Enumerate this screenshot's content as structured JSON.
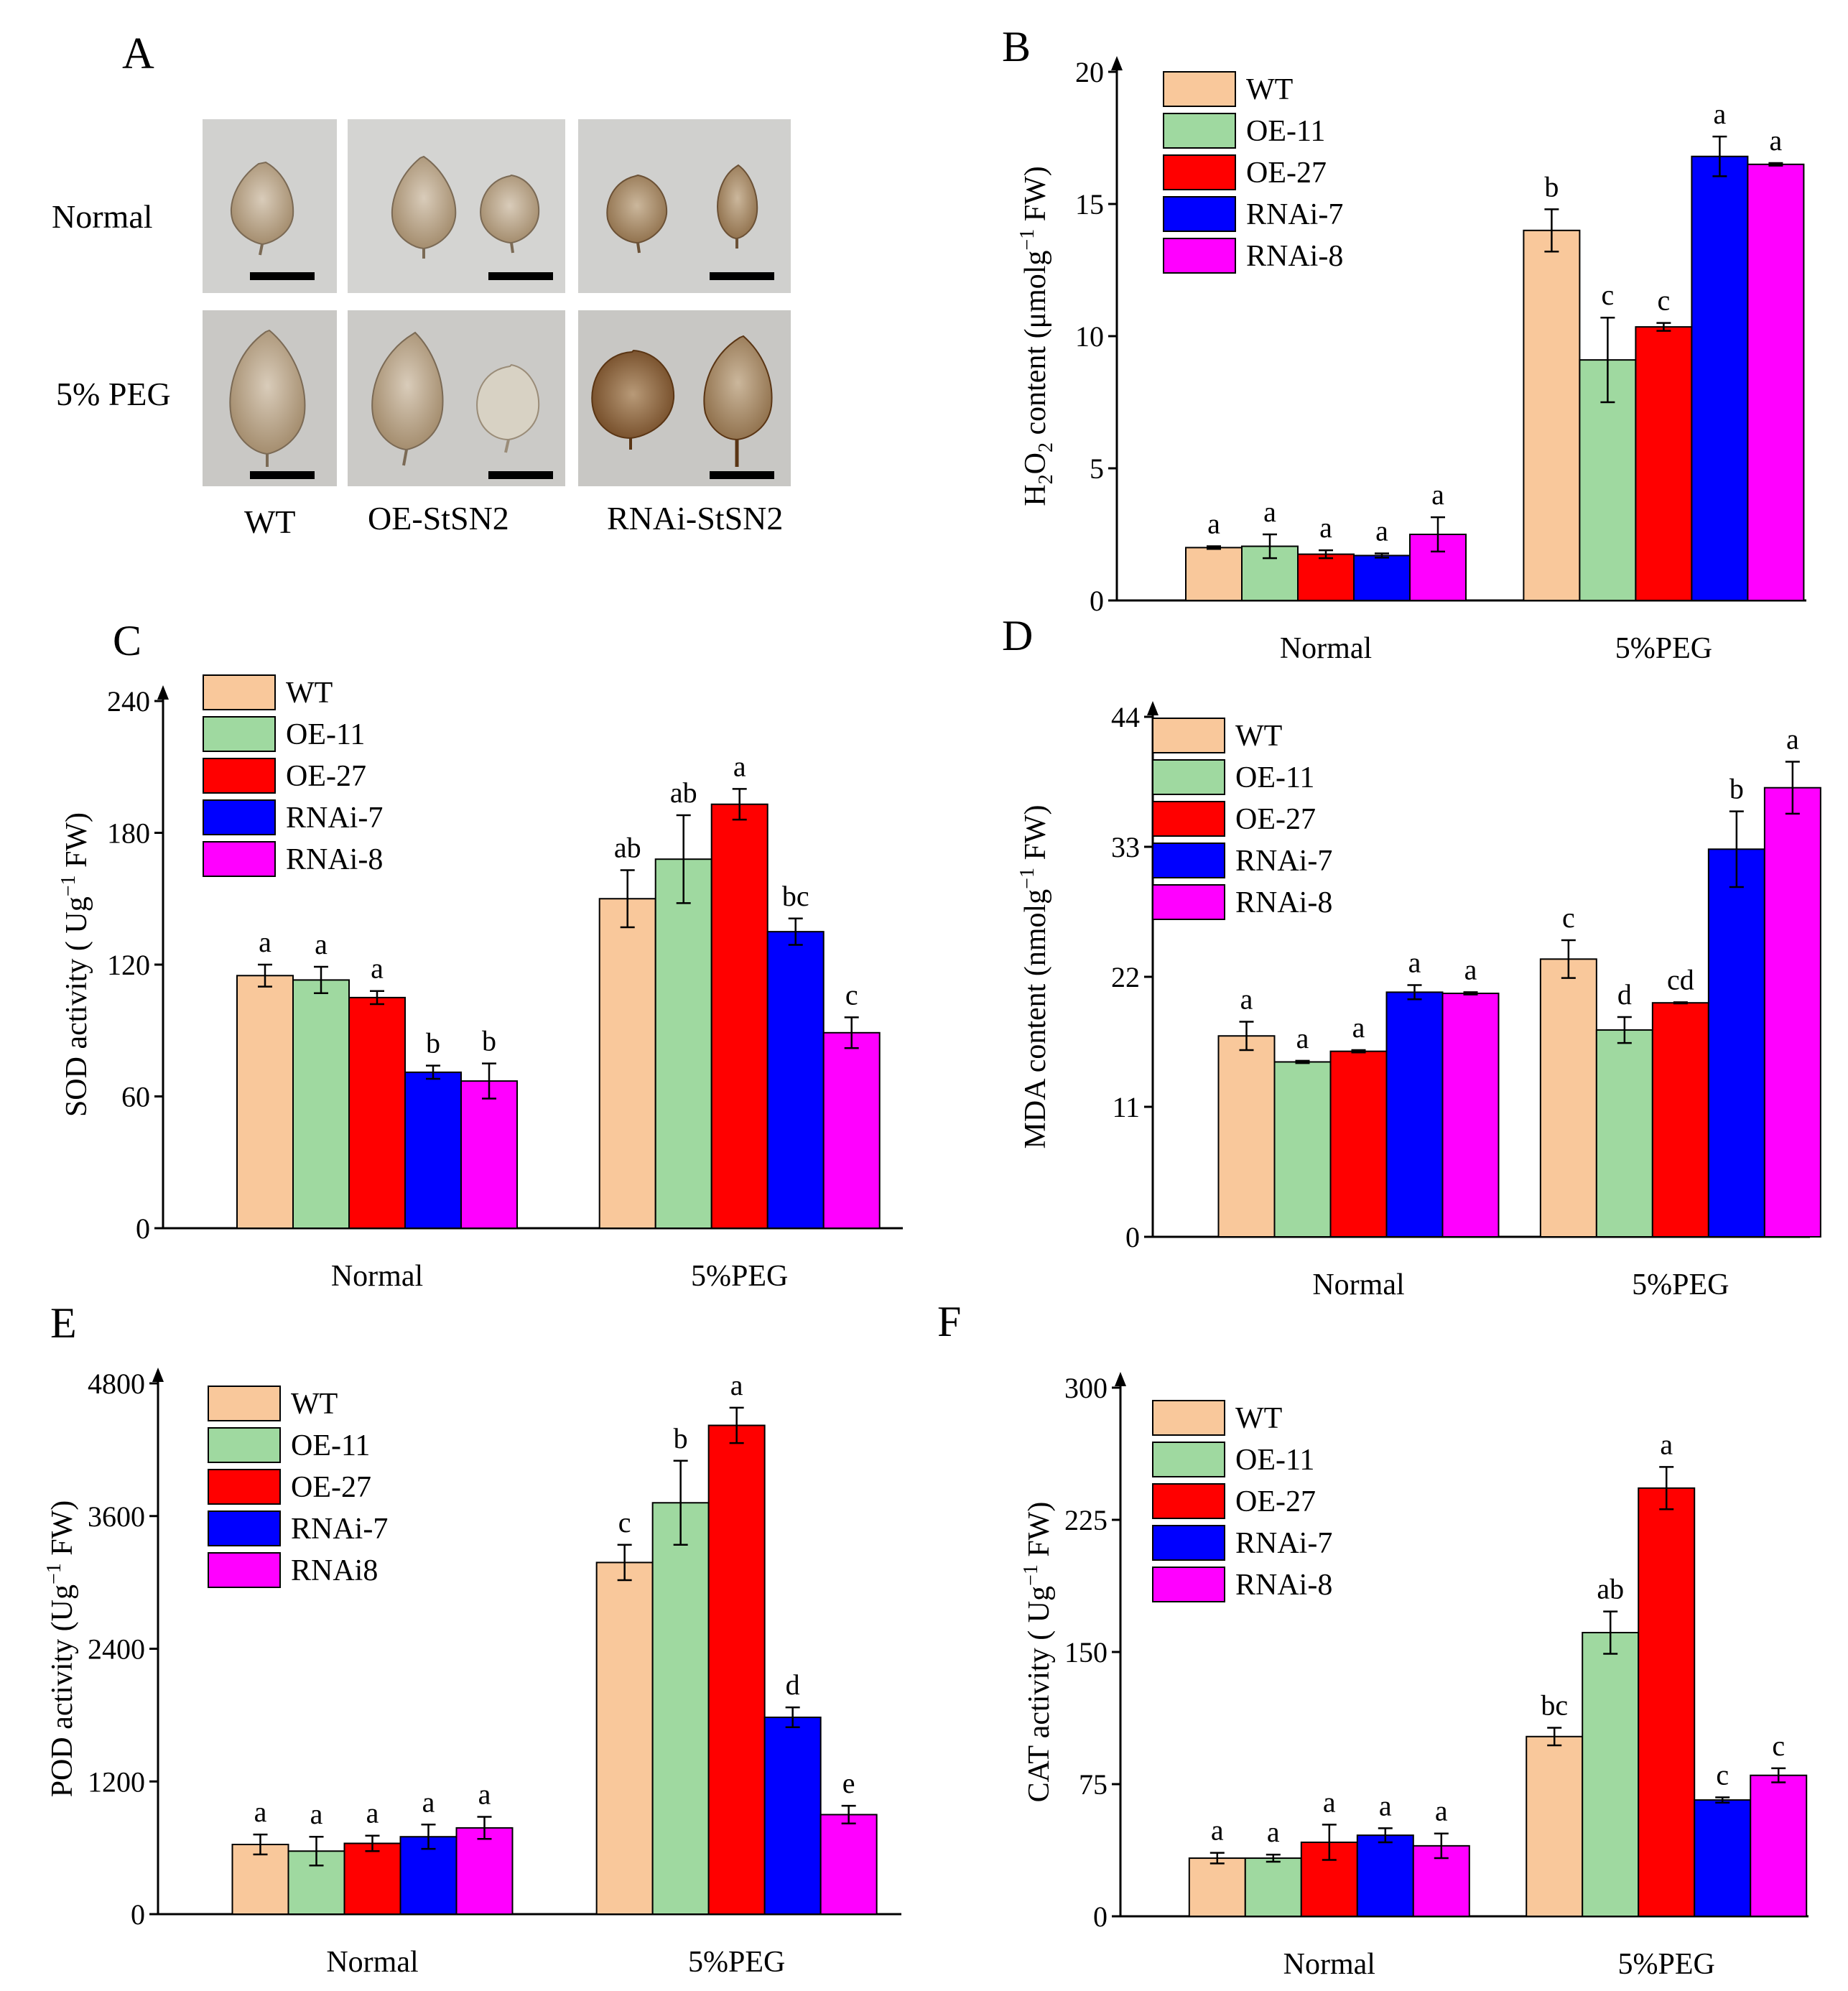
{
  "panel_a": {
    "letter": "A",
    "row_labels": [
      "Normal",
      "5% PEG"
    ],
    "col_labels": [
      "WT",
      "OE-StSN2",
      "RNAi-StSN2"
    ]
  },
  "colors": {
    "WT": "#f9c89b",
    "OE-11": "#9fd9a0",
    "OE-27": "#ff0000",
    "RNAi-7": "#0000ff",
    "RNAi-8": "#ff00ff",
    "photo_bg": "#d4d4d2",
    "leaf_light": "#c9b8a2",
    "leaf_dark": "#8a6136"
  },
  "chart_data": [
    {
      "letter": "B",
      "type": "bar",
      "title": "",
      "xlabel": "",
      "ylabel_parts": [
        "H",
        "2",
        "O",
        "2",
        " content (μmolg",
        "−1",
        " FW)"
      ],
      "ylim": [
        0,
        20
      ],
      "ticks": [
        0,
        5,
        10,
        15,
        20
      ],
      "categories": [
        "Normal",
        "5%PEG"
      ],
      "legend": [
        "WT",
        "OE-11",
        "OE-27",
        "RNAi-7",
        "RNAi-8"
      ],
      "series": [
        {
          "name": "WT",
          "values": [
            2.0,
            14.0
          ],
          "errors": [
            0.05,
            0.8
          ],
          "letters": [
            "a",
            "b"
          ]
        },
        {
          "name": "OE-11",
          "values": [
            2.05,
            9.1
          ],
          "errors": [
            0.45,
            1.6
          ],
          "letters": [
            "a",
            "c"
          ]
        },
        {
          "name": "OE-27",
          "values": [
            1.75,
            10.35
          ],
          "errors": [
            0.15,
            0.15
          ],
          "letters": [
            "a",
            "c"
          ]
        },
        {
          "name": "RNAi-7",
          "values": [
            1.7,
            16.8
          ],
          "errors": [
            0.08,
            0.75
          ],
          "letters": [
            "a",
            "a"
          ]
        },
        {
          "name": "RNAi-8",
          "values": [
            2.5,
            16.5
          ],
          "errors": [
            0.65,
            0.05
          ],
          "letters": [
            "a",
            "a"
          ]
        }
      ]
    },
    {
      "letter": "C",
      "type": "bar",
      "title": "",
      "xlabel": "",
      "ylabel_parts": [
        "SOD activity ( Ug",
        "−1",
        " FW)"
      ],
      "ylim": [
        0,
        240
      ],
      "ticks": [
        0,
        60,
        120,
        180,
        240
      ],
      "categories": [
        "Normal",
        "5%PEG"
      ],
      "legend": [
        "WT",
        "OE-11",
        "OE-27",
        "RNAi-7",
        "RNAi-8"
      ],
      "series": [
        {
          "name": "WT",
          "values": [
            115,
            150
          ],
          "errors": [
            5,
            13
          ],
          "letters": [
            "a",
            "ab"
          ]
        },
        {
          "name": "OE-11",
          "values": [
            113,
            168
          ],
          "errors": [
            6,
            20
          ],
          "letters": [
            "a",
            "ab"
          ]
        },
        {
          "name": "OE-27",
          "values": [
            105,
            193
          ],
          "errors": [
            3,
            7
          ],
          "letters": [
            "a",
            "a"
          ]
        },
        {
          "name": "RNAi-7",
          "values": [
            71,
            135
          ],
          "errors": [
            3,
            6
          ],
          "letters": [
            "b",
            "bc"
          ]
        },
        {
          "name": "RNAi-8",
          "values": [
            67,
            89
          ],
          "errors": [
            8,
            7
          ],
          "letters": [
            "b",
            "c"
          ]
        }
      ]
    },
    {
      "letter": "D",
      "type": "bar",
      "title": "",
      "xlabel": "",
      "ylabel_parts": [
        "MDA content (nmolg",
        "−1",
        " FW)"
      ],
      "ylim": [
        0,
        44
      ],
      "ticks": [
        0,
        11,
        22,
        33,
        44
      ],
      "categories": [
        "Normal",
        "5%PEG"
      ],
      "legend": [
        "WT",
        "OE-11",
        "OE-27",
        "RNAi-7",
        "RNAi-8"
      ],
      "series": [
        {
          "name": "WT",
          "values": [
            17,
            23.5
          ],
          "errors": [
            1.2,
            1.6
          ],
          "letters": [
            "a",
            "c"
          ]
        },
        {
          "name": "OE-11",
          "values": [
            14.8,
            17.5
          ],
          "errors": [
            0.1,
            1.1
          ],
          "letters": [
            "a",
            "d"
          ]
        },
        {
          "name": "OE-27",
          "values": [
            15.7,
            19.8
          ],
          "errors": [
            0.1,
            0.05
          ],
          "letters": [
            "a",
            "cd"
          ]
        },
        {
          "name": "RNAi-7",
          "values": [
            20.7,
            32.8
          ],
          "errors": [
            0.6,
            3.2
          ],
          "letters": [
            "a",
            "b"
          ]
        },
        {
          "name": "RNAi-8",
          "values": [
            20.6,
            38.0
          ],
          "errors": [
            0.1,
            2.2
          ],
          "letters": [
            "a",
            "a"
          ]
        }
      ]
    },
    {
      "letter": "E",
      "type": "bar",
      "title": "",
      "xlabel": "",
      "ylabel_parts": [
        "POD activity (Ug",
        "−1",
        " FW)"
      ],
      "ylim": [
        0,
        4800
      ],
      "ticks": [
        0,
        1200,
        2400,
        3600,
        4800
      ],
      "categories": [
        "Normal",
        "5%PEG"
      ],
      "legend": [
        "WT",
        "OE-11",
        "OE-27",
        "RNAi-7",
        "RNAi8"
      ],
      "series": [
        {
          "name": "WT",
          "values": [
            630,
            3180
          ],
          "errors": [
            90,
            160
          ],
          "letters": [
            "a",
            "c"
          ]
        },
        {
          "name": "OE-11",
          "values": [
            570,
            3720
          ],
          "errors": [
            130,
            380
          ],
          "letters": [
            "a",
            "b"
          ]
        },
        {
          "name": "OE-27",
          "values": [
            640,
            4420
          ],
          "errors": [
            70,
            160
          ],
          "letters": [
            "a",
            "a"
          ]
        },
        {
          "name": "RNAi-7",
          "values": [
            700,
            1780
          ],
          "errors": [
            110,
            90
          ],
          "letters": [
            "a",
            "d"
          ]
        },
        {
          "name": "RNAi8",
          "values": [
            780,
            900
          ],
          "errors": [
            100,
            80
          ],
          "letters": [
            "a",
            "e"
          ]
        }
      ]
    },
    {
      "letter": "F",
      "type": "bar",
      "title": "",
      "xlabel": "",
      "ylabel_parts": [
        "CAT activity ( Ug",
        "−1",
        " FW)"
      ],
      "ylim": [
        0,
        300
      ],
      "ticks": [
        0,
        75,
        150,
        225,
        300
      ],
      "categories": [
        "Normal",
        "5%PEG"
      ],
      "legend": [
        "WT",
        "OE-11",
        "OE-27",
        "RNAi-7",
        "RNAi-8"
      ],
      "series": [
        {
          "name": "WT",
          "values": [
            33,
            102
          ],
          "errors": [
            3,
            5
          ],
          "letters": [
            "a",
            "bc"
          ]
        },
        {
          "name": "OE-11",
          "values": [
            33,
            161
          ],
          "errors": [
            2,
            12
          ],
          "letters": [
            "a",
            "ab"
          ]
        },
        {
          "name": "OE-27",
          "values": [
            42,
            243
          ],
          "errors": [
            10,
            12
          ],
          "letters": [
            "a",
            "a"
          ]
        },
        {
          "name": "RNAi-7",
          "values": [
            46,
            66
          ],
          "errors": [
            4,
            1.5
          ],
          "letters": [
            "a",
            "c"
          ]
        },
        {
          "name": "RNAi-8",
          "values": [
            40,
            80
          ],
          "errors": [
            7,
            4
          ],
          "letters": [
            "a",
            "c"
          ]
        }
      ]
    }
  ]
}
